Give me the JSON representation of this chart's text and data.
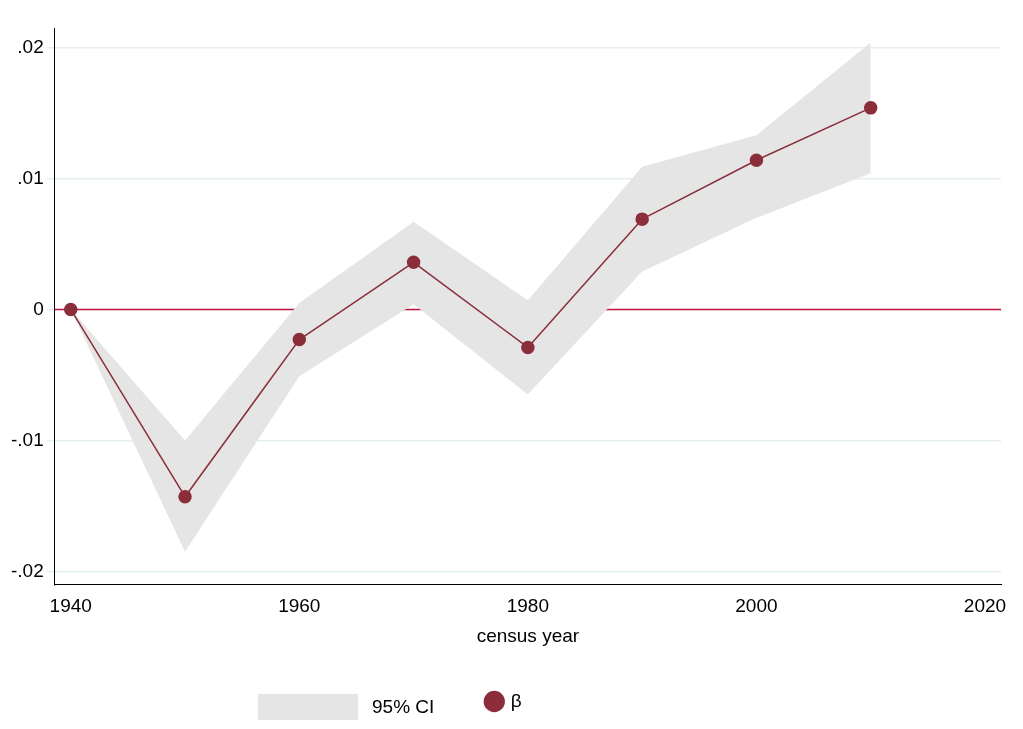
{
  "chart_data": {
    "type": "line",
    "xlabel": "census year",
    "x": [
      1940,
      1950,
      1960,
      1970,
      1980,
      1990,
      2000,
      2010
    ],
    "series": [
      {
        "name": "β",
        "color": "#8b2e3a",
        "values": [
          0,
          -0.0143,
          -0.0023,
          0.0036,
          -0.0029,
          0.0069,
          0.0114,
          0.0154
        ],
        "lower": [
          0,
          -0.0185,
          -0.0051,
          0.0004,
          -0.0065,
          0.0029,
          0.007,
          0.0104
        ],
        "upper": [
          0,
          -0.01,
          0.0005,
          0.0067,
          0.0007,
          0.0109,
          0.0133,
          0.0204
        ]
      }
    ],
    "annotations": [
      "95% CI"
    ],
    "xlim": [
      1938.6,
      2021.4
    ],
    "xticks": [
      1940,
      1960,
      1980,
      2000,
      2020
    ],
    "ylim": [
      -0.021,
      0.0215
    ],
    "yticks": [
      {
        "value": -0.02,
        "label": "-.02"
      },
      {
        "value": -0.01,
        "label": "-.01"
      },
      0,
      {
        "value": 0.01,
        "label": ".01"
      },
      {
        "value": 0.02,
        "label": ".02"
      }
    ],
    "ref_lines": [
      {
        "axis": "y",
        "value": 0,
        "color": "#c0143c"
      }
    ],
    "grid": "y",
    "legend": "bottom",
    "marker": "circle",
    "line_style": "solid"
  }
}
